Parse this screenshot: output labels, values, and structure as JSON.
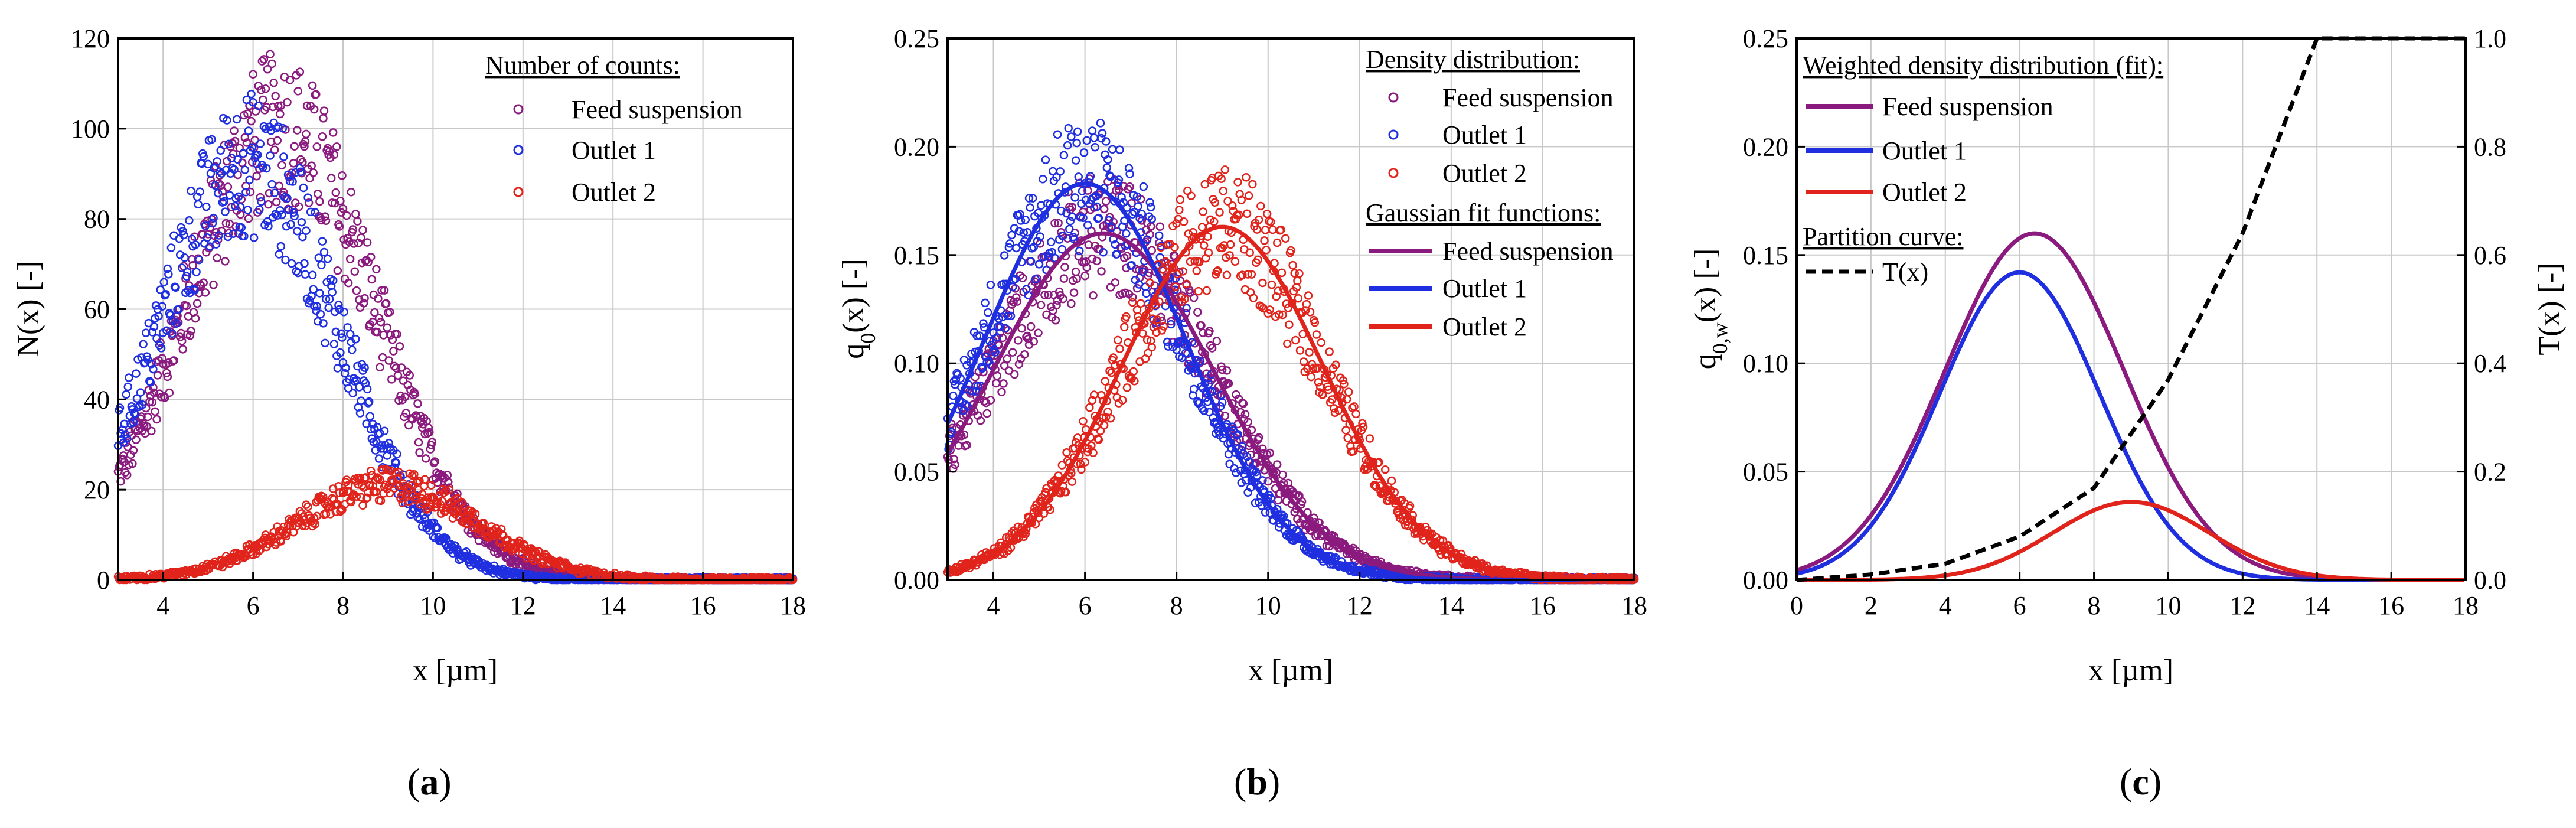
{
  "chart_data": [
    {
      "panel": "(a)",
      "type": "scatter",
      "xlabel": "x [µm]",
      "ylabel": "N(x) [-]",
      "xlim": [
        3,
        18
      ],
      "ylim": [
        0,
        120
      ],
      "xticks": [
        4,
        6,
        8,
        10,
        12,
        14,
        16,
        18
      ],
      "yticks": [
        0,
        20,
        40,
        60,
        80,
        100,
        120
      ],
      "legend_title": "Number of counts:",
      "legend_position": "top-right",
      "series": [
        {
          "name": "Feed suspension",
          "color": "#8b1a7f",
          "marker": "circle-open",
          "model": {
            "amplitude": 100,
            "mean": 6.6,
            "sigma": 2.1
          }
        },
        {
          "name": "Outlet 1",
          "color": "#1f2fe0",
          "marker": "circle-open",
          "model": {
            "amplitude": 92,
            "mean": 5.9,
            "sigma": 2.0
          }
        },
        {
          "name": "Outlet 2",
          "color": "#e0241c",
          "marker": "circle-open",
          "model": {
            "amplitude": 21,
            "mean": 9.0,
            "sigma": 2.0
          }
        }
      ]
    },
    {
      "panel": "(b)",
      "type": "scatter",
      "xlabel": "x [µm]",
      "ylabel": "q0(x) [-]",
      "xlim": [
        3,
        18
      ],
      "ylim": [
        0,
        0.25
      ],
      "xticks": [
        4,
        6,
        8,
        10,
        12,
        14,
        16,
        18
      ],
      "yticks": [
        0.0,
        0.05,
        0.1,
        0.15,
        0.2,
        0.25
      ],
      "legend_title": "Density distribution:",
      "legend_title_2": "Gaussian fit functions:",
      "legend_position": "top-right",
      "series": [
        {
          "name": "Feed suspension",
          "color": "#8b1a7f",
          "marker": "circle-open",
          "fit": {
            "amplitude": 0.16,
            "mean": 6.4,
            "sigma": 2.4
          }
        },
        {
          "name": "Outlet 1",
          "color": "#1f2fe0",
          "marker": "circle-open",
          "fit": {
            "amplitude": 0.183,
            "mean": 6.0,
            "sigma": 2.2
          }
        },
        {
          "name": "Outlet 2",
          "color": "#e0241c",
          "marker": "circle-open",
          "fit": {
            "amplitude": 0.163,
            "mean": 9.0,
            "sigma": 2.2
          }
        }
      ],
      "fit_series": [
        "Feed suspension",
        "Outlet 1",
        "Outlet 2"
      ]
    },
    {
      "panel": "(c)",
      "type": "line",
      "xlabel": "x [µm]",
      "ylabel": "q0,w(x) [-]",
      "ylabel_right": "T(x) [-]",
      "xlim": [
        0,
        18
      ],
      "ylim": [
        0,
        0.25
      ],
      "ylim_right": [
        0,
        1.0
      ],
      "xticks": [
        0,
        2,
        4,
        6,
        8,
        10,
        12,
        14,
        16,
        18
      ],
      "yticks": [
        0.0,
        0.05,
        0.1,
        0.15,
        0.2,
        0.25
      ],
      "yticks_right": [
        0.0,
        0.2,
        0.4,
        0.6,
        0.8,
        1.0
      ],
      "legend_title": "Weighted density distribution (fit):",
      "legend_title_2": "Partition curve:",
      "legend_position": "top-left",
      "series": [
        {
          "name": "Feed suspension",
          "color": "#8b1a7f",
          "fit": {
            "amplitude": 0.16,
            "mean": 6.4,
            "sigma": 2.4
          }
        },
        {
          "name": "Outlet 1",
          "color": "#1f2fe0",
          "fit": {
            "amplitude": 0.142,
            "mean": 6.0,
            "sigma": 2.15
          }
        },
        {
          "name": "Outlet 2",
          "color": "#e0241c",
          "fit": {
            "amplitude": 0.036,
            "mean": 9.0,
            "sigma": 2.1
          }
        }
      ],
      "partition_curve": {
        "name": "T(x)",
        "color": "#000000",
        "style": "dashed",
        "points_x": [
          0,
          2,
          4,
          6,
          8,
          10,
          12,
          14,
          18
        ],
        "points_y": [
          0.0,
          0.01,
          0.03,
          0.08,
          0.17,
          0.37,
          0.64,
          1.0,
          1.0
        ]
      }
    }
  ],
  "panel_labels": [
    "(a)",
    "(b)",
    "(c)"
  ]
}
